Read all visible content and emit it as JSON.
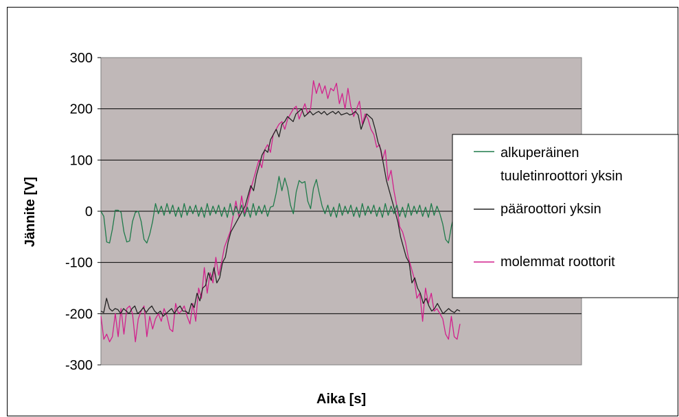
{
  "chart_data": {
    "type": "line",
    "title": "",
    "xlabel": "Aika [s]",
    "ylabel": "Jännite [V]",
    "ylim": [
      -300,
      300
    ],
    "yticks": [
      300,
      200,
      100,
      0,
      -100,
      -200,
      -300
    ],
    "grid": "horizontal",
    "plot_background": "#c0b8b8",
    "legend_placement": "right",
    "series": [
      {
        "name": "alkuperäinen tuuletinroottori yksin",
        "color": "#1f7a4a",
        "values": [
          0,
          -10,
          -60,
          -62,
          -35,
          2,
          2,
          -2,
          -40,
          -60,
          -58,
          -20,
          -2,
          0,
          -20,
          -55,
          -62,
          -45,
          -20,
          15,
          -5,
          10,
          -8,
          15,
          -5,
          12,
          -10,
          8,
          -12,
          15,
          -8,
          10,
          -5,
          12,
          -10,
          8,
          -12,
          15,
          -8,
          10,
          -5,
          12,
          -10,
          8,
          -12,
          15,
          -8,
          10,
          -5,
          12,
          -10,
          8,
          -12,
          15,
          -8,
          10,
          -5,
          12,
          -10,
          8,
          10,
          35,
          68,
          40,
          65,
          45,
          12,
          -5,
          38,
          60,
          55,
          58,
          20,
          5,
          45,
          62,
          35,
          10,
          -5,
          12,
          -10,
          8,
          -12,
          15,
          -8,
          10,
          -5,
          12,
          -10,
          8,
          -12,
          15,
          -8,
          10,
          -5,
          12,
          -10,
          8,
          -12,
          15,
          -8,
          10,
          -5,
          12,
          -10,
          8,
          -12,
          15,
          -8,
          10,
          -5,
          12,
          -10,
          8,
          -12,
          15,
          -8,
          10,
          -5,
          -25,
          -55,
          -62,
          -30,
          -5,
          0,
          -8
        ]
      },
      {
        "name": "pääroottori yksin",
        "color": "#222222",
        "values": [
          -195,
          -198,
          -170,
          -190,
          -195,
          -190,
          -192,
          -200,
          -190,
          -195,
          -200,
          -190,
          -185,
          -200,
          -195,
          -188,
          -198,
          -190,
          -185,
          -195,
          -200,
          -195,
          -205,
          -200,
          -195,
          -190,
          -200,
          -190,
          -185,
          -195,
          -195,
          -200,
          -180,
          -188,
          -160,
          -175,
          -150,
          -145,
          -120,
          -135,
          -110,
          -140,
          -130,
          -100,
          -90,
          -60,
          -40,
          -30,
          -20,
          -10,
          0,
          10,
          30,
          50,
          40,
          70,
          90,
          110,
          120,
          115,
          140,
          150,
          160,
          145,
          170,
          175,
          185,
          180,
          175,
          190,
          195,
          200,
          185,
          190,
          195,
          188,
          192,
          195,
          190,
          195,
          188,
          192,
          195,
          190,
          195,
          188,
          190,
          192,
          188,
          190,
          195,
          188,
          160,
          175,
          190,
          185,
          180,
          160,
          135,
          120,
          90,
          60,
          40,
          20,
          0,
          -20,
          -50,
          -70,
          -90,
          -100,
          -140,
          -130,
          -150,
          -160,
          -180,
          -170,
          -185,
          -195,
          -190,
          -180,
          -190,
          -200,
          -195,
          -190,
          -195,
          -198,
          -192,
          -195
        ]
      },
      {
        "name": "molemmat roottorit",
        "color": "#d21f8c",
        "values": [
          -205,
          -250,
          -240,
          -255,
          -245,
          -200,
          -245,
          -190,
          -240,
          -190,
          -185,
          -200,
          -255,
          -210,
          -195,
          -185,
          -245,
          -205,
          -230,
          -210,
          -200,
          -215,
          -190,
          -205,
          -230,
          -235,
          -180,
          -200,
          -195,
          -185,
          -205,
          -220,
          -180,
          -215,
          -150,
          -170,
          -110,
          -160,
          -120,
          -140,
          -90,
          -125,
          -100,
          -70,
          -55,
          -40,
          -10,
          20,
          -10,
          30,
          -5,
          15,
          40,
          60,
          80,
          100,
          85,
          120,
          130,
          115,
          150,
          160,
          170,
          175,
          160,
          180,
          190,
          200,
          205,
          180,
          195,
          210,
          190,
          200,
          255,
          230,
          250,
          230,
          245,
          220,
          240,
          235,
          250,
          210,
          230,
          200,
          240,
          205,
          185,
          200,
          215,
          170,
          190,
          180,
          160,
          150,
          125,
          130,
          100,
          120,
          60,
          80,
          40,
          10,
          -30,
          -40,
          -60,
          -90,
          -110,
          -130,
          -170,
          -160,
          -215,
          -150,
          -180,
          -160,
          -195,
          -190,
          -200,
          -210,
          -240,
          -250,
          -205,
          -245,
          -250,
          -220
        ]
      }
    ]
  }
}
